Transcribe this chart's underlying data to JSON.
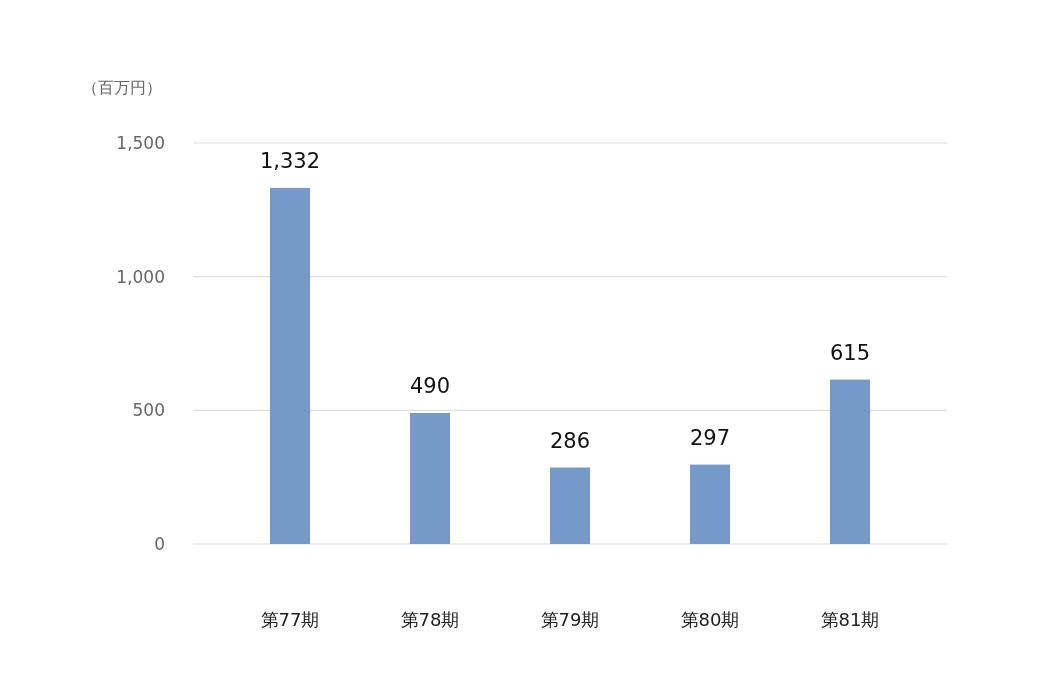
{
  "chart_data": {
    "type": "bar",
    "ylabel": "（百万円）",
    "categories": [
      "第77期",
      "第78期",
      "第79期",
      "第80期",
      "第81期"
    ],
    "values": [
      1332,
      490,
      286,
      297,
      615
    ],
    "color": "#7599c8",
    "ylim": [
      0,
      1500
    ],
    "yticks": [
      0,
      500,
      {
        "value": 1000,
        "label": "1,000"
      },
      {
        "value": 1500,
        "label": "1,500"
      }
    ],
    "value_labels": [
      "1,332",
      "490",
      "286",
      "297",
      "615"
    ],
    "grid": "y"
  }
}
